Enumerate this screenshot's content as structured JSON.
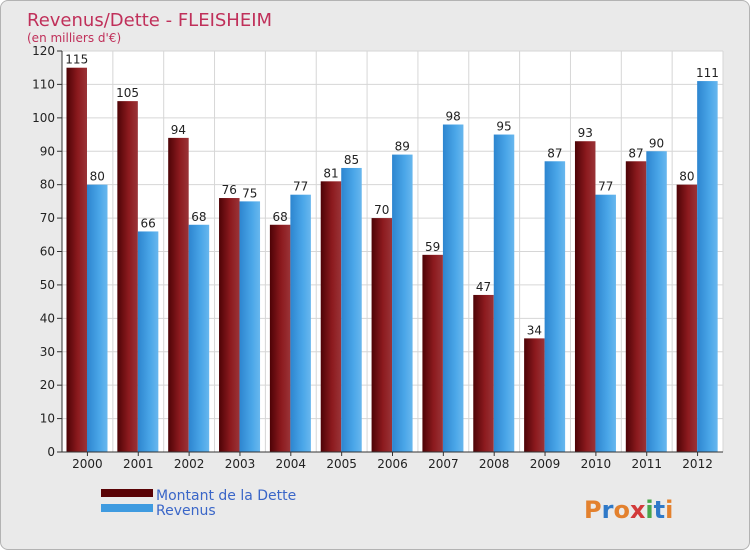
{
  "chart_data": {
    "type": "bar",
    "title": "Revenus/Dette - FLEISHEIM",
    "subtitle": "(en milliers d'€)",
    "categories": [
      "2000",
      "2001",
      "2002",
      "2003",
      "2004",
      "2005",
      "2006",
      "2007",
      "2008",
      "2009",
      "2010",
      "2011",
      "2012"
    ],
    "series": [
      {
        "name": "Montant de la Dette",
        "color": "#7a0a0e",
        "values": [
          115,
          105,
          94,
          76,
          68,
          81,
          70,
          59,
          47,
          34,
          93,
          87,
          80
        ]
      },
      {
        "name": "Revenus",
        "color": "#3f9be0",
        "values": [
          80,
          66,
          68,
          75,
          77,
          85,
          89,
          98,
          95,
          87,
          77,
          90,
          111
        ]
      }
    ],
    "y_ticks": [
      0,
      10,
      20,
      30,
      40,
      50,
      60,
      70,
      80,
      90,
      100,
      110,
      120
    ],
    "ylim": [
      0,
      120
    ],
    "grid": true,
    "legend_position": "bottom-left"
  },
  "branding": {
    "logo_text": "Proxiti"
  }
}
